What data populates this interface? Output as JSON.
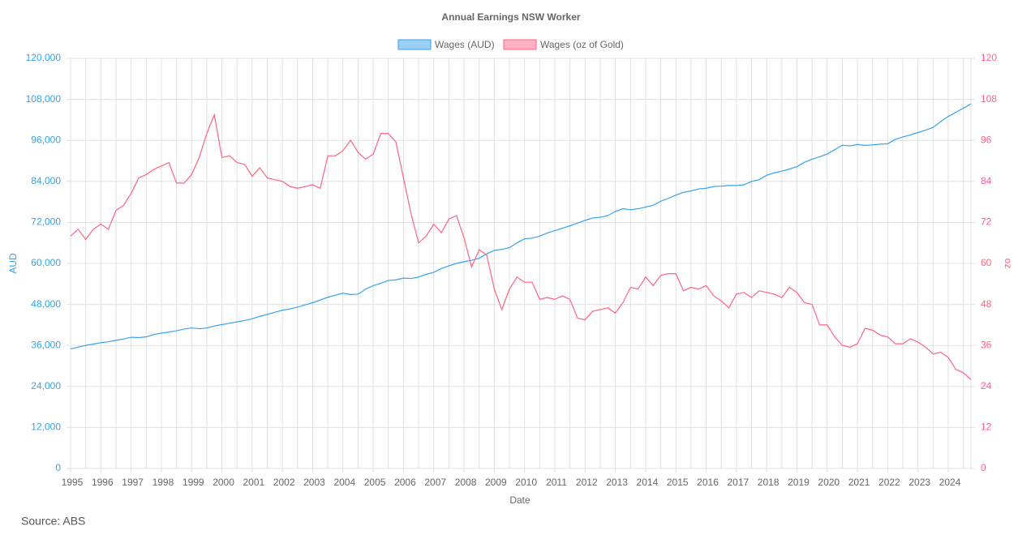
{
  "chart_data": {
    "type": "line",
    "title": "Annual Earnings NSW Worker",
    "source": "Source: ABS",
    "x_label": "Date",
    "y_label": "AUD",
    "y2_label": "oz",
    "categories": [
      "1995",
      null,
      null,
      null,
      "1996",
      null,
      null,
      null,
      "1997",
      null,
      null,
      null,
      "1998",
      null,
      null,
      null,
      "1999",
      null,
      null,
      null,
      "2000",
      null,
      null,
      null,
      "2001",
      null,
      null,
      null,
      "2002",
      null,
      null,
      null,
      "2003",
      null,
      null,
      null,
      "2004",
      null,
      null,
      null,
      "2005",
      null,
      null,
      null,
      "2006",
      null,
      null,
      null,
      "2007",
      null,
      null,
      null,
      "2008",
      null,
      null,
      null,
      "2009",
      null,
      null,
      null,
      "2010",
      null,
      null,
      null,
      "2011",
      null,
      null,
      null,
      "2012",
      null,
      null,
      null,
      "2013",
      null,
      null,
      null,
      "2014",
      null,
      null,
      null,
      "2015",
      null,
      null,
      null,
      "2016",
      null,
      null,
      null,
      "2017",
      null,
      null,
      null,
      "2018",
      null,
      null,
      null,
      "2019",
      null,
      null,
      null,
      "2020",
      null,
      null,
      null,
      "2021",
      null,
      null,
      null,
      "2022",
      null,
      null,
      null,
      "2023",
      null,
      null,
      null,
      "2024",
      null,
      null,
      null
    ],
    "series": [
      {
        "name": "Wages (AUD)",
        "color": "#36a2eb",
        "fill": "#9ad0f5",
        "axis": "y",
        "values": [
          35000,
          35500,
          36000,
          36400,
          36800,
          37100,
          37500,
          37900,
          38400,
          38300,
          38500,
          39200,
          39600,
          39900,
          40300,
          40800,
          41100,
          40900,
          41100,
          41700,
          42100,
          42500,
          42900,
          43300,
          43800,
          44500,
          45100,
          45700,
          46300,
          46700,
          47200,
          47900,
          48500,
          49300,
          50100,
          50700,
          51300,
          50900,
          51000,
          52500,
          53500,
          54200,
          55000,
          55200,
          55700,
          55600,
          56000,
          56800,
          57400,
          58500,
          59300,
          60000,
          60500,
          60900,
          61500,
          62800,
          63800,
          64100,
          64600,
          66000,
          67200,
          67400,
          68000,
          68900,
          69600,
          70300,
          71000,
          71800,
          72600,
          73300,
          73500,
          74000,
          75200,
          76000,
          75700,
          76000,
          76500,
          77000,
          78200,
          79000,
          80000,
          80800,
          81200,
          81800,
          82000,
          82500,
          82600,
          82800,
          82800,
          83000,
          84000,
          84500,
          85800,
          86500,
          87000,
          87600,
          88300,
          89600,
          90500,
          91200,
          92000,
          93300,
          94600,
          94400,
          94800,
          94500,
          94700,
          94900,
          95000,
          96300,
          97000,
          97600,
          98300,
          99000,
          99800,
          101500,
          103000,
          104200,
          105400,
          106700
        ]
      },
      {
        "name": "Wages (oz of Gold)",
        "color": "#ff6384",
        "fill": "#ffb1c1",
        "axis": "y2",
        "values": [
          68,
          70,
          67,
          70,
          71.5,
          70,
          75.5,
          77,
          80.5,
          85,
          86,
          87.5,
          88.5,
          89.5,
          83.5,
          83.5,
          86,
          91,
          98,
          103.5,
          91,
          91.5,
          89.5,
          89,
          85.5,
          88,
          85,
          84.5,
          84,
          82.5,
          82,
          82.5,
          83,
          82,
          91.5,
          91.5,
          93,
          96,
          92.5,
          90.5,
          92,
          98,
          98,
          95.5,
          85,
          74.5,
          66,
          68,
          71.5,
          69,
          73,
          74,
          67.5,
          59,
          64,
          62.5,
          52.5,
          46.5,
          52.5,
          56,
          54.5,
          54.5,
          49.5,
          50,
          49.5,
          50.5,
          49.5,
          44,
          43.5,
          46,
          46.5,
          47,
          45.5,
          48.5,
          53,
          52.5,
          56,
          53.5,
          56.5,
          57,
          57,
          52,
          53,
          52.5,
          53.5,
          50.5,
          49,
          47,
          51,
          51.5,
          50,
          52,
          51.5,
          51,
          50,
          53,
          51.5,
          48.5,
          48,
          42,
          42,
          38.5,
          36,
          35.5,
          36.5,
          41,
          40.5,
          39,
          38.5,
          36.5,
          36.5,
          38,
          37,
          35.5,
          33.5,
          34,
          32.5,
          29,
          28,
          26
        ]
      }
    ],
    "ylim": [
      0,
      120000
    ],
    "yticks": [
      {
        "value": 0,
        "label": "0"
      },
      {
        "value": 12000,
        "label": "12,000"
      },
      {
        "value": 24000,
        "label": "24,000"
      },
      {
        "value": 36000,
        "label": "36,000"
      },
      {
        "value": 48000,
        "label": "48,000"
      },
      {
        "value": 60000,
        "label": "60,000"
      },
      {
        "value": 72000,
        "label": "72,000"
      },
      {
        "value": 84000,
        "label": "84,000"
      },
      {
        "value": 96000,
        "label": "96,000"
      },
      {
        "value": 108000,
        "label": "108,000"
      },
      {
        "value": 120000,
        "label": "120,000"
      }
    ],
    "y2lim": [
      0,
      120
    ],
    "y2ticks": [
      0,
      12,
      24,
      36,
      48,
      60,
      72,
      84,
      96,
      108,
      120
    ],
    "grid": true,
    "legend": "top"
  }
}
